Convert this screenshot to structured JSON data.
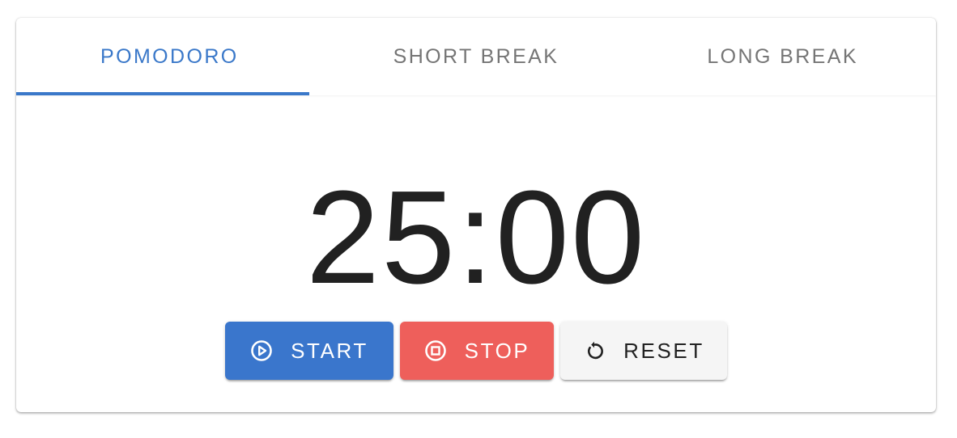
{
  "tabs": [
    {
      "label": "POMODORO",
      "active": true
    },
    {
      "label": "SHORT BREAK",
      "active": false
    },
    {
      "label": "LONG BREAK",
      "active": false
    }
  ],
  "timer": {
    "display": "25:00"
  },
  "buttons": {
    "start": {
      "label": "START",
      "icon": "play-circle-icon"
    },
    "stop": {
      "label": "STOP",
      "icon": "stop-circle-icon"
    },
    "reset": {
      "label": "RESET",
      "icon": "restart-icon"
    }
  },
  "colors": {
    "accent": "#3a78c9",
    "start": "#3a76cc",
    "stop": "#ee5f5b",
    "reset": "#f5f5f5"
  }
}
